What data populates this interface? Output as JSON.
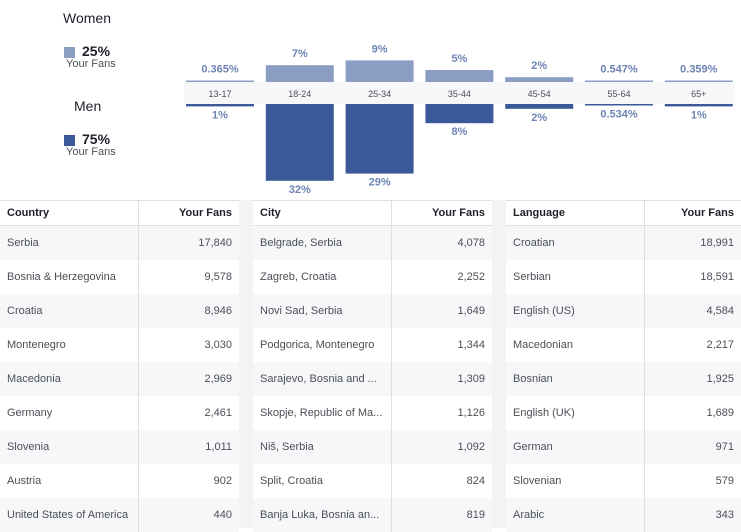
{
  "legend": {
    "women": {
      "title": "Women",
      "percent": "25%",
      "sub": "Your Fans",
      "color": "#8b9dc3"
    },
    "men": {
      "title": "Men",
      "percent": "75%",
      "sub": "Your Fans",
      "color": "#3b5998"
    }
  },
  "chart_data": {
    "type": "bar",
    "categories": [
      "13-17",
      "18-24",
      "25-34",
      "35-44",
      "45-54",
      "55-64",
      "65+"
    ],
    "series": [
      {
        "name": "Women",
        "values": [
          0.365,
          7,
          9,
          5,
          2,
          0.547,
          0.359
        ],
        "labels": [
          "0.365%",
          "7%",
          "9%",
          "5%",
          "2%",
          "0.547%",
          "0.359%"
        ]
      },
      {
        "name": "Men",
        "values": [
          1,
          32,
          29,
          8,
          2,
          0.534,
          1
        ],
        "labels": [
          "1%",
          "32%",
          "29%",
          "8%",
          "2%",
          "0.534%",
          "1%"
        ]
      }
    ]
  },
  "tables": [
    {
      "header": [
        "Country",
        "Your Fans"
      ],
      "rows": [
        [
          "Serbia",
          "17,840"
        ],
        [
          "Bosnia & Herzegovina",
          "9,578"
        ],
        [
          "Croatia",
          "8,946"
        ],
        [
          "Montenegro",
          "3,030"
        ],
        [
          "Macedonia",
          "2,969"
        ],
        [
          "Germany",
          "2,461"
        ],
        [
          "Slovenia",
          "1,011"
        ],
        [
          "Austria",
          "902"
        ],
        [
          "United States of America",
          "440"
        ]
      ]
    },
    {
      "header": [
        "City",
        "Your Fans"
      ],
      "rows": [
        [
          "Belgrade, Serbia",
          "4,078"
        ],
        [
          "Zagreb, Croatia",
          "2,252"
        ],
        [
          "Novi Sad, Serbia",
          "1,649"
        ],
        [
          "Podgorica, Montenegro",
          "1,344"
        ],
        [
          "Sarajevo, Bosnia and ...",
          "1,309"
        ],
        [
          "Skopje, Republic of Ma...",
          "1,126"
        ],
        [
          "Niš, Serbia",
          "1,092"
        ],
        [
          "Split, Croatia",
          "824"
        ],
        [
          "Banja Luka, Bosnia an...",
          "819"
        ]
      ]
    },
    {
      "header": [
        "Language",
        "Your Fans"
      ],
      "rows": [
        [
          "Croatian",
          "18,991"
        ],
        [
          "Serbian",
          "18,591"
        ],
        [
          "English (US)",
          "4,584"
        ],
        [
          "Macedonian",
          "2,217"
        ],
        [
          "Bosnian",
          "1,925"
        ],
        [
          "English (UK)",
          "1,689"
        ],
        [
          "German",
          "971"
        ],
        [
          "Slovenian",
          "579"
        ],
        [
          "Arabic",
          "343"
        ]
      ]
    }
  ]
}
